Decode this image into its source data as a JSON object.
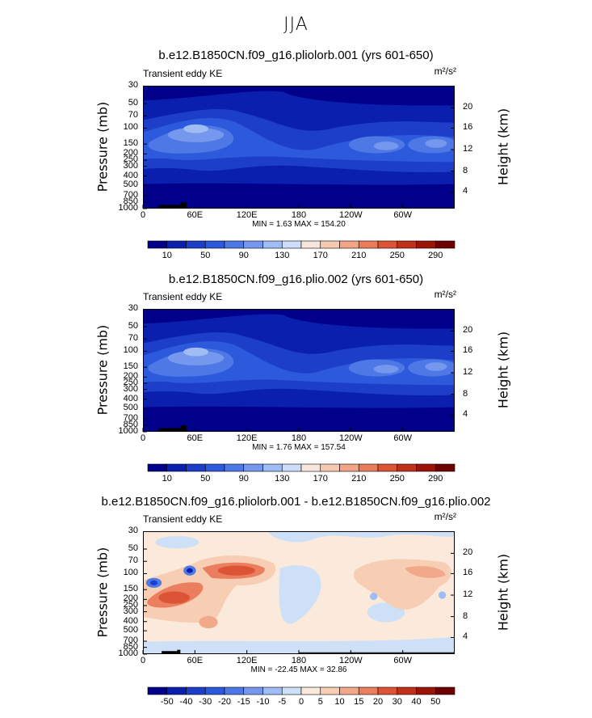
{
  "figure": {
    "title": "JJA"
  },
  "chart_data": [
    {
      "type": "heatmap",
      "title": "b.e12.B1850CN.f09_g16.pliolorb.001 (yrs 601-650)",
      "left_label": "Transient eddy KE",
      "right_label": "m²/s²",
      "ylabel": "Pressure (mb)",
      "y2label": "Height (km)",
      "x_ticks": [
        "0",
        "60E",
        "120E",
        "180",
        "120W",
        "60W"
      ],
      "y_ticks": [
        "30",
        "50",
        "70",
        "100",
        "150",
        "200",
        "250",
        "300",
        "400",
        "500",
        "700",
        "850",
        "1000"
      ],
      "y2_ticks": [
        "20",
        "16",
        "12",
        "8",
        "4"
      ],
      "min_max_text": "MIN =    1.63   MAX = 154.20",
      "min": 1.63,
      "max": 154.2,
      "colorbar_labels": [
        "10",
        "50",
        "90",
        "130",
        "170",
        "210",
        "250",
        "290"
      ],
      "colorbar_colors": [
        "#00008a",
        "#0a1fae",
        "#1c3ec8",
        "#2d59dc",
        "#4d78e6",
        "#7598ee",
        "#a0bcf4",
        "#cddcf9",
        "#f8e6dc",
        "#f6c8b0",
        "#f2a486",
        "#ea7c5c",
        "#dc5436",
        "#c0301a",
        "#9a1408",
        "#6e0000"
      ],
      "levels": [
        10,
        30,
        50,
        70,
        90,
        110,
        130,
        150
      ]
    },
    {
      "type": "heatmap",
      "title": "b.e12.B1850CN.f09_g16.plio.002 (yrs 601-650)",
      "left_label": "Transient eddy KE",
      "right_label": "m²/s²",
      "ylabel": "Pressure (mb)",
      "y2label": "Height (km)",
      "x_ticks": [
        "0",
        "60E",
        "120E",
        "180",
        "120W",
        "60W"
      ],
      "y_ticks": [
        "30",
        "50",
        "70",
        "100",
        "150",
        "200",
        "250",
        "300",
        "400",
        "500",
        "700",
        "850",
        "1000"
      ],
      "y2_ticks": [
        "20",
        "16",
        "12",
        "8",
        "4"
      ],
      "min_max_text": "MIN =    1.76   MAX = 157.54",
      "min": 1.76,
      "max": 157.54,
      "colorbar_labels": [
        "10",
        "50",
        "90",
        "130",
        "170",
        "210",
        "250",
        "290"
      ],
      "colorbar_colors": [
        "#00008a",
        "#0a1fae",
        "#1c3ec8",
        "#2d59dc",
        "#4d78e6",
        "#7598ee",
        "#a0bcf4",
        "#cddcf9",
        "#f8e6dc",
        "#f6c8b0",
        "#f2a486",
        "#ea7c5c",
        "#dc5436",
        "#c0301a",
        "#9a1408",
        "#6e0000"
      ],
      "levels": [
        10,
        30,
        50,
        70,
        90,
        110,
        130,
        150
      ]
    },
    {
      "type": "heatmap",
      "title": "b.e12.B1850CN.f09_g16.pliolorb.001 - b.e12.B1850CN.f09_g16.plio.002",
      "left_label": "Transient eddy KE",
      "right_label": "m²/s²",
      "ylabel": "Pressure (mb)",
      "y2label": "Height (km)",
      "x_ticks": [
        "0",
        "60E",
        "120E",
        "180",
        "120W",
        "60W"
      ],
      "y_ticks": [
        "30",
        "50",
        "70",
        "100",
        "150",
        "200",
        "250",
        "300",
        "400",
        "500",
        "700",
        "850",
        "1000"
      ],
      "y2_ticks": [
        "20",
        "16",
        "12",
        "8",
        "4"
      ],
      "min_max_text": "MIN = -22.45   MAX =  32.86",
      "min": -22.45,
      "max": 32.86,
      "colorbar_labels": [
        "-50",
        "-40",
        "-30",
        "-20",
        "-15",
        "-10",
        "-5",
        "0",
        "5",
        "10",
        "15",
        "20",
        "30",
        "40",
        "50"
      ],
      "colorbar_colors": [
        "#00008a",
        "#0a1fae",
        "#1c3ec8",
        "#2d59dc",
        "#4d78e6",
        "#7598ee",
        "#a0bcf4",
        "#cde0f8",
        "#fbe9dc",
        "#f7cdb4",
        "#f2a88a",
        "#ea7e5e",
        "#dc5436",
        "#c0301a",
        "#9a1408",
        "#6e0000"
      ],
      "levels": [
        -50,
        -40,
        -30,
        -20,
        -15,
        -10,
        -5,
        0,
        5,
        10,
        15,
        20,
        30,
        40,
        50
      ]
    }
  ]
}
